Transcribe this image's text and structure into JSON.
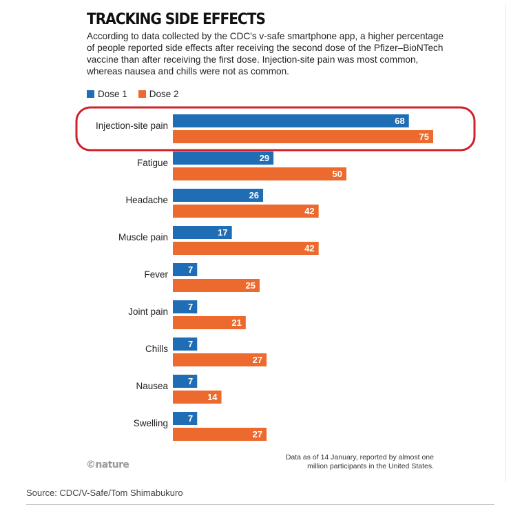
{
  "chart_data": {
    "type": "bar",
    "orientation": "horizontal",
    "title": "TRACKING SIDE EFFECTS",
    "subtitle": "According to data collected by the CDC's v-safe smartphone app, a higher percentage of people reported side effects after receiving the second dose of the Pfizer–BioNTech vaccine than after receiving the first dose. Injection-site pain was most common, whereas nausea and chills were not as common.",
    "categories": [
      "Injection-site pain",
      "Fatigue",
      "Headache",
      "Muscle pain",
      "Fever",
      "Joint pain",
      "Chills",
      "Nausea",
      "Swelling"
    ],
    "series": [
      {
        "name": "Dose 1",
        "color": "#1f6db5",
        "values": [
          68,
          29,
          26,
          17,
          7,
          7,
          7,
          7,
          7
        ]
      },
      {
        "name": "Dose 2",
        "color": "#ec6a2e",
        "values": [
          75,
          50,
          42,
          42,
          25,
          21,
          27,
          14,
          27
        ]
      }
    ],
    "xlim": [
      0,
      75
    ],
    "legend_position": "top-left",
    "grid": false,
    "highlight": {
      "category": "Injection-site pain",
      "color": "#d0202a",
      "shape": "rounded-rectangle"
    }
  },
  "logo_text": "©nature",
  "note": "Data as of 14 January, reported by almost one million participants in the United States.",
  "source": "Source: CDC/V-Safe/Tom Shimabukuro"
}
